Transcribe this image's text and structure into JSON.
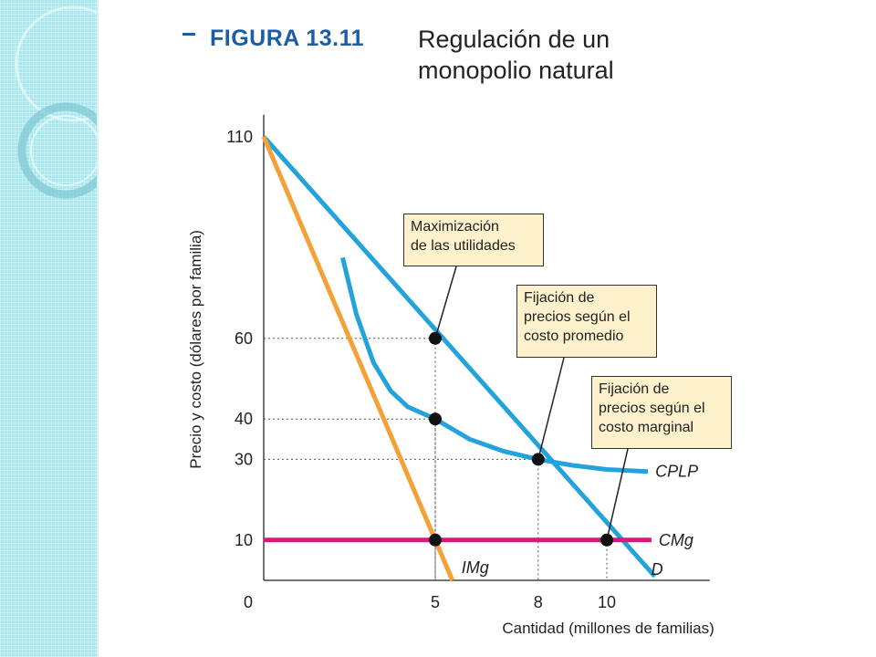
{
  "header": {
    "figure_label": "FIGURA 13.11",
    "figure_title": "Regulación de un monopolio natural"
  },
  "colors": {
    "demand": "#23a3dc",
    "avg_cost": "#23a3dc",
    "marginal_revenue": "#f4a238",
    "marginal_cost": "#e0147a",
    "annotation_fill": "#fdf2cc",
    "accent_strip": "#a9e6ee"
  },
  "chart_data": {
    "type": "line",
    "xlabel": "Cantidad (millones de familias)",
    "ylabel": "Precio y costo (dólares por familia)",
    "xlim": [
      0,
      13
    ],
    "ylim": [
      0,
      110
    ],
    "x_ticks": [
      0,
      5,
      8,
      10
    ],
    "y_ticks": [
      10,
      30,
      40,
      60,
      110
    ],
    "grid": false,
    "series": [
      {
        "name": "D",
        "x": [
          0,
          11.4
        ],
        "y": [
          110,
          1
        ]
      },
      {
        "name": "IMg",
        "x": [
          0,
          5.5
        ],
        "y": [
          110,
          0
        ]
      },
      {
        "name": "CMg",
        "x": [
          0,
          11.3
        ],
        "y": [
          10,
          10
        ]
      },
      {
        "name": "CPLP",
        "x": [
          2.3,
          2.7,
          3.2,
          3.7,
          4.2,
          5,
          6,
          7,
          8,
          9,
          10,
          11.2
        ],
        "y": [
          80,
          66,
          54,
          47,
          43,
          40,
          35,
          32,
          30,
          28.5,
          27.5,
          27
        ]
      }
    ],
    "points": [
      {
        "x": 5,
        "y": 60
      },
      {
        "x": 5,
        "y": 40
      },
      {
        "x": 5,
        "y": 10
      },
      {
        "x": 8,
        "y": 30
      },
      {
        "x": 10,
        "y": 10
      }
    ],
    "annotations": [
      {
        "text": "Maximización\nde las utilidades",
        "x": 5,
        "y": 60
      },
      {
        "text": "Fijación de\nprecios según el\ncosto promedio",
        "x": 8,
        "y": 30
      },
      {
        "text": "Fijación de\nprecios según el\ncosto marginal",
        "x": 10,
        "y": 10
      }
    ]
  }
}
